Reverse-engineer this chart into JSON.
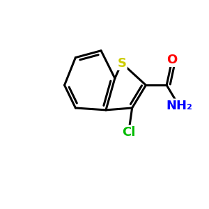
{
  "bg_color": "#ffffff",
  "bond_color": "#000000",
  "bond_width": 2.2,
  "S_color": "#cccc00",
  "Cl_color": "#00bb00",
  "O_color": "#ff0000",
  "N_color": "#0000ff",
  "font_size_atom": 13,
  "fig_size": [
    3.0,
    3.0
  ],
  "dpi": 100,
  "xlim": [
    0,
    10
  ],
  "ylim": [
    0,
    10
  ]
}
